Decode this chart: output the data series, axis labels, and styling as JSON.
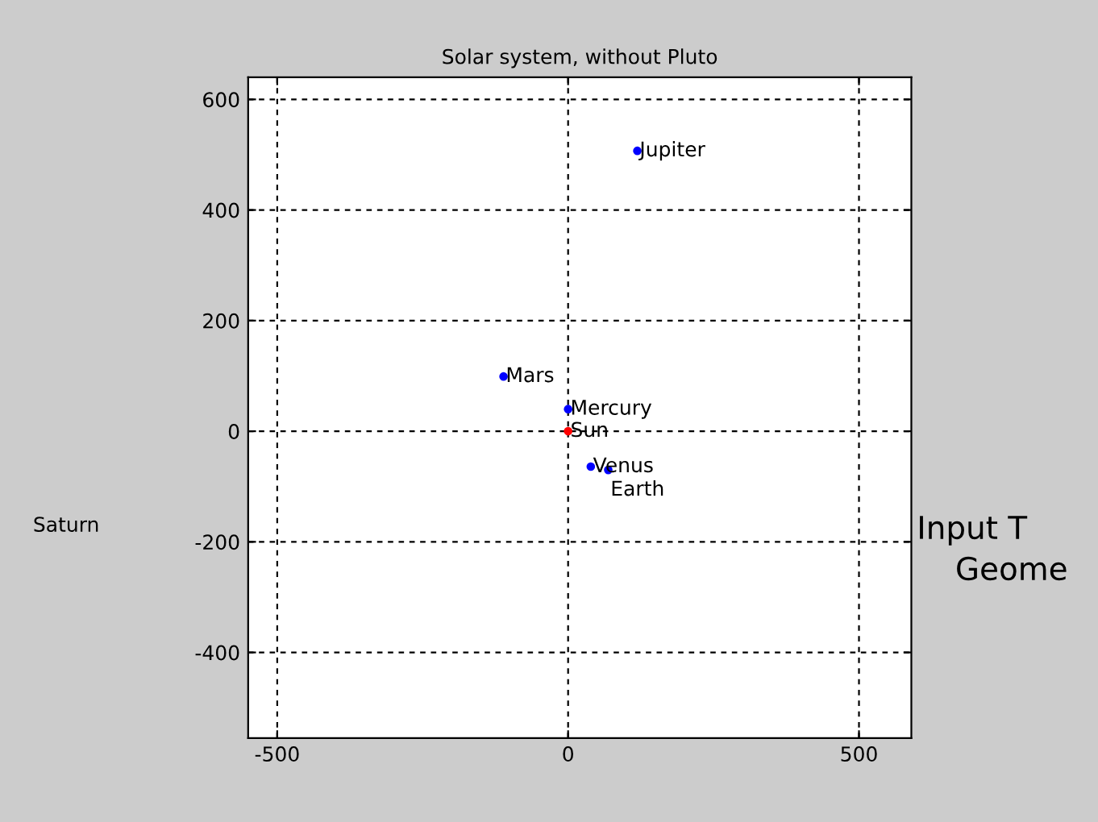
{
  "chart_data": {
    "type": "scatter",
    "title": "Solar system, without Pluto",
    "series": [
      {
        "color": "#ff0000",
        "x": [
          0
        ],
        "values": [
          0
        ]
      },
      {
        "color": "#0000ff",
        "x": [
          0,
          39,
          69,
          -111,
          119
        ],
        "values": [
          40,
          -64,
          -70,
          99,
          507
        ]
      }
    ],
    "annotations": [
      {
        "text": "Sun",
        "x": 0,
        "y": 0
      },
      {
        "text": "Mercury",
        "x": 0,
        "y": 40
      },
      {
        "text": "Venus",
        "x": 39,
        "y": -64
      },
      {
        "text": "Earth",
        "x": 69,
        "y": -70
      },
      {
        "text": "Mars",
        "x": -111,
        "y": 99
      },
      {
        "text": "Jupiter",
        "x": 119,
        "y": 507
      },
      "Saturn",
      "Input T",
      "Geome"
    ],
    "xlim": [
      -550,
      590
    ],
    "ylim": [
      -555,
      640
    ],
    "xticks": [
      -500,
      0,
      500
    ],
    "yticks": [
      -400,
      -200,
      0,
      200,
      400,
      600
    ],
    "grid": true,
    "marker": "circle"
  }
}
